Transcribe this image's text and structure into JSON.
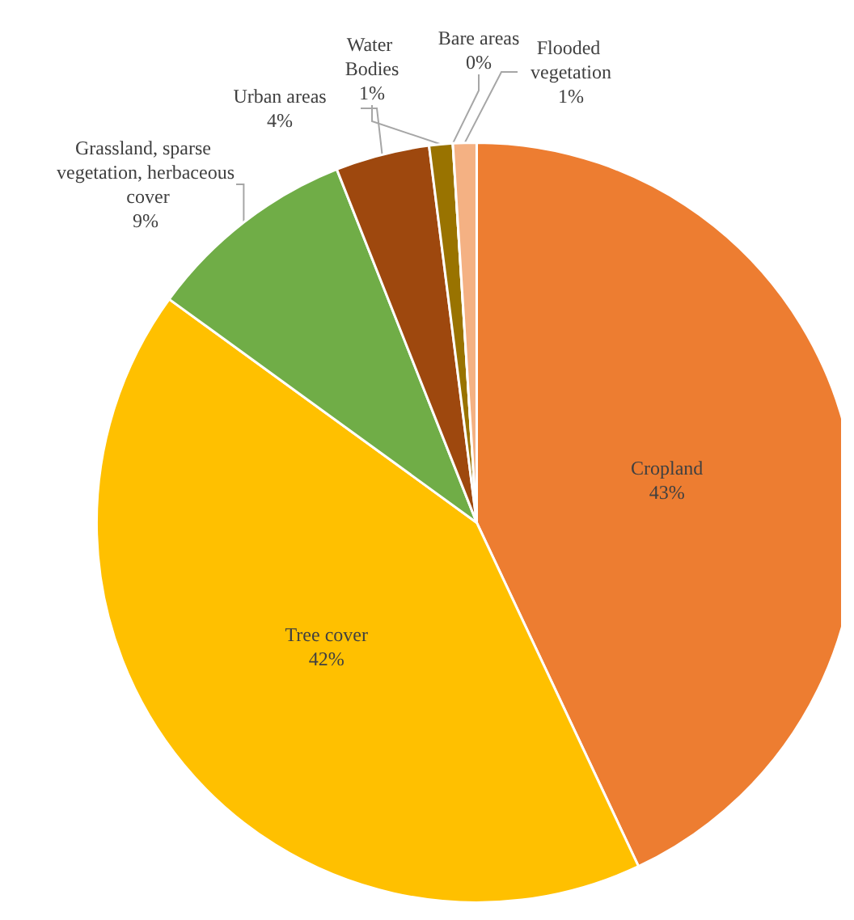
{
  "chart_data": {
    "type": "pie",
    "categories": [
      "Cropland",
      "Tree cover",
      "Grassland, sparse vegetation, herbaceous cover",
      "Urban areas",
      "Water Bodies",
      "Bare areas",
      "Flooded vegetation"
    ],
    "values": [
      43,
      42,
      9,
      4,
      1,
      0,
      1
    ],
    "value_labels": [
      "43%",
      "42%",
      "9%",
      "4%",
      "1%",
      "0%",
      "1%"
    ],
    "colors": [
      "#ed7d31",
      "#ffc000",
      "#70ad47",
      "#9e480e",
      "#997300",
      "#43682b",
      "#f4b183"
    ],
    "legend": false
  }
}
